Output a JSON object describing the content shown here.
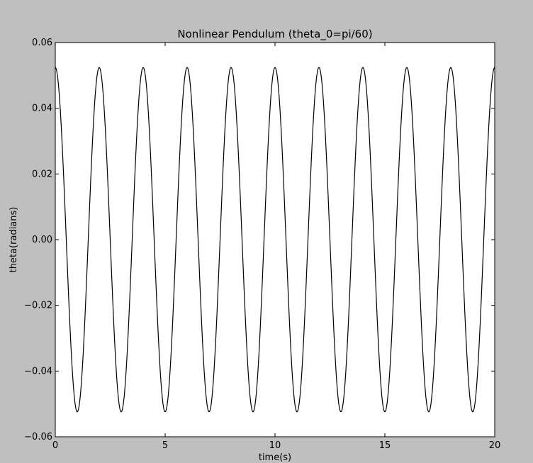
{
  "chart_data": {
    "type": "line",
    "title": "Nonlinear Pendulum (theta_0=pi/60)",
    "xlabel": "time(s)",
    "ylabel": "theta(radians)",
    "xlim": [
      0,
      20
    ],
    "ylim": [
      -0.06,
      0.06
    ],
    "x_ticks": [
      0,
      5,
      10,
      15,
      20
    ],
    "x_tick_labels": [
      "0",
      "5",
      "10",
      "15",
      "20"
    ],
    "y_ticks": [
      0.06,
      0.04,
      0.02,
      0.0,
      -0.02,
      -0.04,
      -0.06
    ],
    "y_tick_labels": [
      "0.06",
      "0.04",
      "0.02",
      "0.00",
      "−0.02",
      "−0.04",
      "−0.06"
    ],
    "grid": false,
    "series": [
      {
        "amplitude": 0.0524,
        "period": 2.0,
        "color": "#000000",
        "x": [
          0,
          1,
          2,
          3,
          4,
          5,
          6,
          7,
          8,
          9,
          10,
          11,
          12,
          13,
          14,
          15,
          16,
          17,
          18,
          19,
          20
        ],
        "values": [
          0.0524,
          -0.0524,
          0.0524,
          -0.0524,
          0.0524,
          -0.0524,
          0.0524,
          -0.0524,
          0.0524,
          -0.0524,
          0.0524,
          -0.0524,
          0.0524,
          -0.0524,
          0.0524,
          -0.0524,
          0.0524,
          -0.0524,
          0.0524,
          -0.0524,
          0.0524
        ]
      }
    ]
  },
  "colors": {
    "background": "#bfbfbf",
    "plot_area": "#ffffff",
    "line": "#000000",
    "axes": "#000000"
  }
}
